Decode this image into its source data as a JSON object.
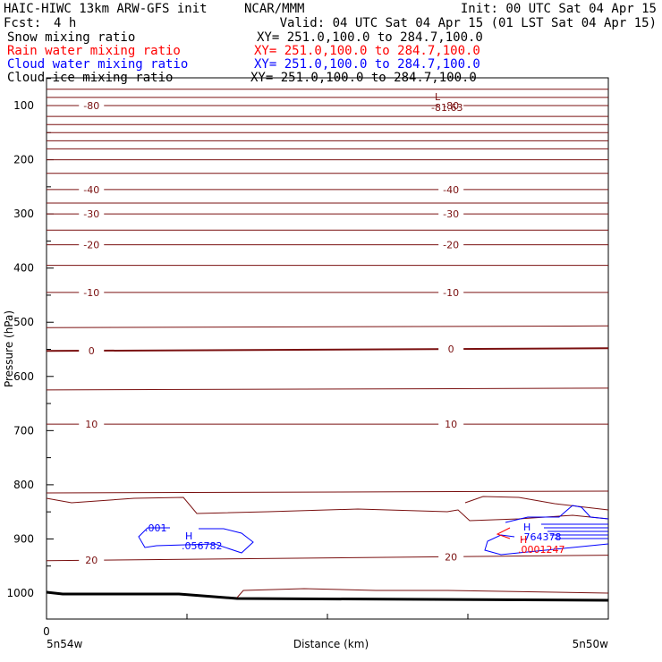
{
  "header": {
    "model": "HAIC-HIWC 13km ARW-GFS init",
    "org": "NCAR/MMM",
    "init": "Init: 00 UTC Sat 04 Apr 15",
    "fcst_label": "Fcst:",
    "fcst_value": "4 h",
    "valid": "Valid: 04 UTC Sat 04 Apr 15 (01 LST Sat 04 Apr 15)"
  },
  "fields": [
    {
      "name": "Snow mixing ratio",
      "xy": "XY= 251.0,100.0 to 284.7,100.0",
      "color": "#000000"
    },
    {
      "name": "Rain water mixing ratio",
      "xy": "XY= 251.0,100.0 to 284.7,100.0",
      "color": "#ff0000"
    },
    {
      "name": "Cloud water mixing ratio",
      "xy": "XY= 251.0,100.0 to 284.7,100.0",
      "color": "#0000ff"
    },
    {
      "name": "Cloud ice mixing ratio",
      "xy": "XY= 251.0,100.0 to 284.7,100.0",
      "color": "#000000"
    }
  ],
  "colors": {
    "temperature": "#7a1010",
    "cloud_water": "#0000ff",
    "rain_water": "#ff0000",
    "terrain": "#000000"
  },
  "chart_data": {
    "type": "line",
    "title": "",
    "xlabel": "Distance (km)",
    "ylabel": "Pressure (hPa)",
    "x_range": [
      0,
      4
    ],
    "y_range": [
      1050,
      50
    ],
    "y_ticks": [
      100,
      200,
      300,
      400,
      500,
      600,
      700,
      800,
      900,
      1000
    ],
    "x_tick_labels": {
      "origin": "0",
      "left_end": "5n54w",
      "right_end": "5n50w"
    },
    "grid": false,
    "temperature_contours": [
      {
        "label": "-80",
        "values": [
          {
            "x": 0,
            "p": 100
          },
          {
            "x": 4,
            "p": 100
          }
        ]
      },
      {
        "label": "-40",
        "values": [
          {
            "x": 0,
            "p": 255
          },
          {
            "x": 4,
            "p": 255
          }
        ]
      },
      {
        "label": "-30",
        "values": [
          {
            "x": 0,
            "p": 300
          },
          {
            "x": 4,
            "p": 300
          }
        ]
      },
      {
        "label": "-20",
        "values": [
          {
            "x": 0,
            "p": 357
          },
          {
            "x": 4,
            "p": 357
          }
        ]
      },
      {
        "label": "-10",
        "values": [
          {
            "x": 0,
            "p": 445
          },
          {
            "x": 4,
            "p": 445
          }
        ]
      },
      {
        "label": "0",
        "values": [
          {
            "x": 0,
            "p": 553
          },
          {
            "x": 4,
            "p": 548
          }
        ]
      },
      {
        "label": "10",
        "values": [
          {
            "x": 0,
            "p": 688
          },
          {
            "x": 4,
            "p": 688
          }
        ]
      },
      {
        "label": "20",
        "values": [
          {
            "x": 0,
            "p": 940
          },
          {
            "x": 4,
            "p": 930
          }
        ]
      }
    ],
    "annotations": [
      {
        "text": "L",
        "kind": "temperature_min"
      },
      {
        "text": "-81.63",
        "kind": "temperature_min_value"
      },
      {
        "text": ".001",
        "kind": "cloud_water_contour"
      },
      {
        "text": "H",
        "kind": "cloud_water_max"
      },
      {
        "text": ".056782",
        "kind": "cloud_water_max_value"
      },
      {
        "text": "H",
        "kind": "cloud_water_max"
      },
      {
        "text": ".764378",
        "kind": "cloud_water_max_value"
      },
      {
        "text": "H",
        "kind": "rain_water_max"
      },
      {
        "text": ".0001247",
        "kind": "rain_water_max_value"
      }
    ]
  }
}
